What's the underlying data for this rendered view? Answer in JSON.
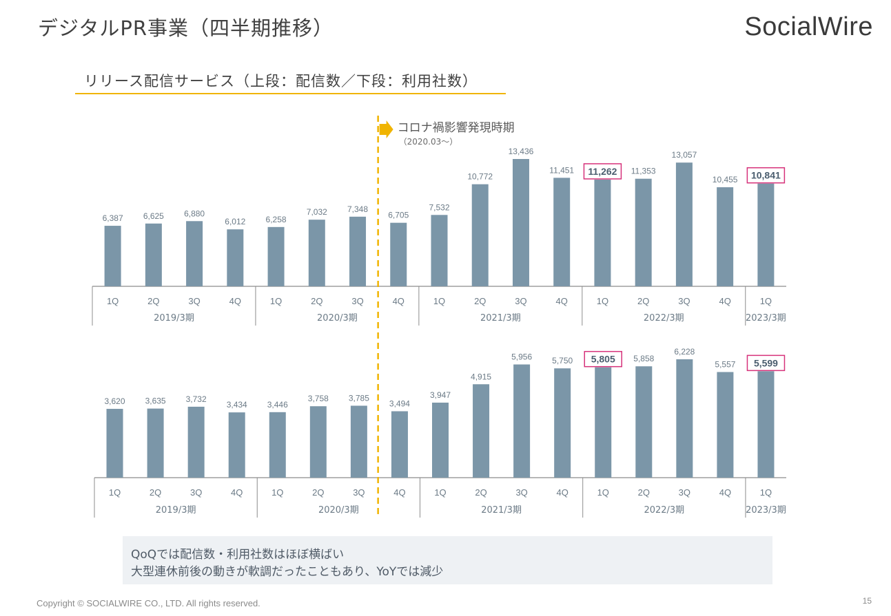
{
  "page": {
    "title": "デジタルPR事業（四半期推移）",
    "logo": "SocialWire",
    "section_title": "リリース配信サービス（上段：配信数／下段：利用社数）",
    "note_lines": [
      "QoQでは配信数・利用社数はほぼ横ばい",
      "大型連休前後の動きが軟調だったこともあり、YoYでは減少"
    ],
    "footer": "Copyright © SOCIALWIRE CO., LTD. All rights reserved.",
    "page_number": "15"
  },
  "annotation": {
    "label": "コロナ禍影響発現時期",
    "sublabel": "（2020.03～）",
    "position_after_index": 6,
    "line_color": "#f0b400"
  },
  "colors": {
    "bar": "#7b96a8",
    "highlight_border": "#d6317a",
    "axis": "#8c8c8c"
  },
  "chart_data": [
    {
      "type": "bar",
      "name": "配信数",
      "categories": [
        "1Q",
        "2Q",
        "3Q",
        "4Q",
        "1Q",
        "2Q",
        "3Q",
        "4Q",
        "1Q",
        "2Q",
        "3Q",
        "4Q",
        "1Q",
        "2Q",
        "3Q",
        "4Q",
        "1Q"
      ],
      "groups": [
        {
          "label": "2019/3期",
          "count": 4
        },
        {
          "label": "2020/3期",
          "count": 4
        },
        {
          "label": "2021/3期",
          "count": 4
        },
        {
          "label": "2022/3期",
          "count": 4
        },
        {
          "label": "2023/3期",
          "count": 1
        }
      ],
      "values": [
        6387,
        6625,
        6880,
        6012,
        6258,
        7032,
        7348,
        6705,
        7532,
        10772,
        13436,
        11451,
        11262,
        11353,
        13057,
        10455,
        10841
      ],
      "labels": [
        "6,387",
        "6,625",
        "6,880",
        "6,012",
        "6,258",
        "7,032",
        "7,348",
        "6,705",
        "7,532",
        "10,772",
        "13,436",
        "11,451",
        "11,262",
        "11,353",
        "13,057",
        "10,455",
        "10,841"
      ],
      "highlighted": [
        12,
        16
      ],
      "ylim": [
        0,
        13436
      ]
    },
    {
      "type": "bar",
      "name": "利用社数",
      "categories": [
        "1Q",
        "2Q",
        "3Q",
        "4Q",
        "1Q",
        "2Q",
        "3Q",
        "4Q",
        "1Q",
        "2Q",
        "3Q",
        "4Q",
        "1Q",
        "2Q",
        "3Q",
        "4Q",
        "1Q"
      ],
      "groups": [
        {
          "label": "2019/3期",
          "count": 4
        },
        {
          "label": "2020/3期",
          "count": 4
        },
        {
          "label": "2021/3期",
          "count": 4
        },
        {
          "label": "2022/3期",
          "count": 4
        },
        {
          "label": "2023/3期",
          "count": 1
        }
      ],
      "values": [
        3620,
        3635,
        3732,
        3434,
        3446,
        3758,
        3785,
        3494,
        3947,
        4915,
        5956,
        5750,
        5805,
        5858,
        6228,
        5557,
        5599
      ],
      "labels": [
        "3,620",
        "3,635",
        "3,732",
        "3,434",
        "3,446",
        "3,758",
        "3,785",
        "3,494",
        "3,947",
        "4,915",
        "5,956",
        "5,750",
        "5,805",
        "5,858",
        "6,228",
        "5,557",
        "5,599"
      ],
      "highlighted": [
        12,
        16
      ],
      "ylim": [
        0,
        6228
      ]
    }
  ]
}
